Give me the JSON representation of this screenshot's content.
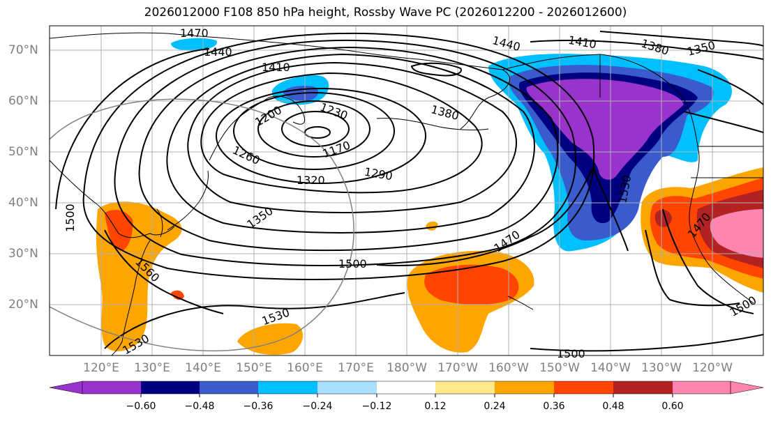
{
  "title": "2026012000 F108 850 hPa height, Rossby Wave PC (2026012200 - 2026012600)",
  "lat_labels": [
    "70°N",
    "60°N",
    "50°N",
    "40°N",
    "30°N",
    "20°N"
  ],
  "lon_labels": [
    "120°E",
    "130°E",
    "140°E",
    "150°E",
    "160°E",
    "170°E",
    "180°W",
    "170°W",
    "160°W",
    "150°W",
    "140°W",
    "130°W",
    "120°W"
  ],
  "contour_labels": [
    "1470",
    "1440",
    "1410",
    "1200",
    "1230",
    "1170",
    "1260",
    "1320",
    "1290",
    "1380",
    "1350",
    "1440",
    "1410",
    "1380",
    "1350",
    "1530",
    "1470",
    "1500",
    "1500",
    "1560",
    "1530",
    "1530",
    "1500",
    "1500",
    "1470"
  ],
  "colorbar": {
    "ticks": [
      "−0.60",
      "−0.48",
      "−0.36",
      "−0.24",
      "−0.12",
      "0.12",
      "0.24",
      "0.36",
      "0.48",
      "0.60"
    ],
    "colors": [
      "#9933cc",
      "#000080",
      "#3a5bcc",
      "#00bfff",
      "#aadfff",
      "#ffffff",
      "#ffe98a",
      "#ffa500",
      "#ff4500",
      "#b22222",
      "#ff85b0"
    ]
  },
  "colors": {
    "neg_strong": "#9933cc",
    "neg_dark": "#000080",
    "neg_mid": "#3a5bcc",
    "neg_light": "#00bfff",
    "pos_light": "#ffe98a",
    "pos_mid": "#ffa500",
    "pos_strong": "#ff4500",
    "pos_dark": "#b22222",
    "pos_pink": "#ff85b0"
  }
}
